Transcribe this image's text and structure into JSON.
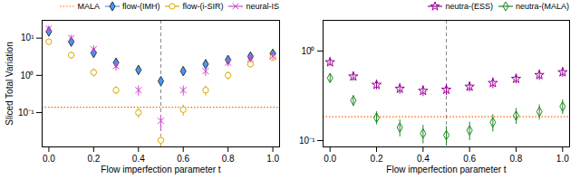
{
  "chart_data": [
    {
      "type": "scatter",
      "x_label": "Flow imperfection parameter t",
      "y_label": "Sliced Total Variation",
      "x": [
        0.0,
        0.1,
        0.2,
        0.3,
        0.4,
        0.5,
        0.6,
        0.7,
        0.8,
        0.9,
        1.0
      ],
      "xlim": [
        -0.03,
        1.03
      ],
      "xticks": [
        {
          "value": 0,
          "label": "0.0"
        },
        0.2,
        0.4,
        0.6,
        0.8,
        {
          "value": 1,
          "label": "1.0"
        }
      ],
      "ylim": [
        0.012,
        30
      ],
      "yticks": [
        {
          "value": 0.1,
          "label": "10⁻¹"
        },
        {
          "value": 1,
          "label": "10⁰"
        },
        {
          "value": 10,
          "label": "10¹"
        }
      ],
      "log": "y",
      "grid": false,
      "legend": "upper right",
      "hlines": [
        {
          "name": "MALA",
          "value": 0.14,
          "color": "#ff6600",
          "line_style": "dotted"
        }
      ],
      "vlines": [
        {
          "value": 0.5,
          "color": "#888888",
          "line_style": "dashed"
        }
      ],
      "series": [
        {
          "name": "flow-(IMH)",
          "color": "#4499ff",
          "marker": "diamond",
          "values": [
            15,
            8,
            4,
            2.2,
            1.4,
            0.7,
            1.3,
            2.0,
            2.6,
            3.2,
            3.8
          ],
          "errors": [
            2.5,
            1.5,
            0.8,
            0.5,
            0.3,
            0.15,
            0.25,
            0.35,
            0.45,
            0.55,
            0.65
          ]
        },
        {
          "name": "flow-(i-SIR)",
          "color": "#ddaa00",
          "marker": "open-circle",
          "values": [
            8,
            3.5,
            1.2,
            0.4,
            0.1,
            0.018,
            0.12,
            0.4,
            1.0,
            2.0,
            3.0
          ],
          "errors": [
            1.5,
            0.8,
            0.3,
            0.1,
            0.03,
            0.006,
            0.04,
            0.12,
            0.25,
            0.4,
            0.6
          ]
        },
        {
          "name": "neural-IS",
          "color": "#cc44cc",
          "marker": "x",
          "values": [
            18,
            10,
            5,
            1.8,
            0.4,
            0.06,
            0.4,
            1.3,
            2.2,
            2.8,
            3.3
          ],
          "errors": [
            3,
            2,
            1.2,
            0.5,
            0.12,
            0.025,
            0.12,
            0.35,
            0.5,
            0.6,
            0.7
          ]
        }
      ]
    },
    {
      "type": "scatter",
      "x_label": "Flow imperfection parameter t",
      "x": [
        0.0,
        0.1,
        0.2,
        0.3,
        0.4,
        0.5,
        0.6,
        0.7,
        0.8,
        0.9,
        1.0
      ],
      "xlim": [
        -0.03,
        1.03
      ],
      "xticks": [
        {
          "value": 0,
          "label": "0.0"
        },
        0.2,
        0.4,
        0.6,
        0.8,
        {
          "value": 1,
          "label": "1.0"
        }
      ],
      "ylim": [
        0.085,
        2.2
      ],
      "yticks": [
        {
          "value": 0.1,
          "label": "10⁻¹"
        },
        {
          "value": 1,
          "label": "10⁰"
        }
      ],
      "log": "y",
      "grid": false,
      "legend": "upper right",
      "hlines": [
        {
          "value": 0.185,
          "color": "#ff6600",
          "line_style": "dotted"
        }
      ],
      "vlines": [
        {
          "value": 0.5,
          "color": "#888888",
          "line_style": "dashed"
        }
      ],
      "series": [
        {
          "name": "neutra-(ESS)",
          "color": "#990099",
          "marker": "open-star",
          "values": [
            0.75,
            0.52,
            0.42,
            0.38,
            0.36,
            0.37,
            0.4,
            0.44,
            0.49,
            0.54,
            0.58
          ],
          "errors": [
            0.07,
            0.06,
            0.05,
            0.05,
            0.05,
            0.05,
            0.05,
            0.06,
            0.06,
            0.07,
            0.07
          ]
        },
        {
          "name": "neutra-(MALA)",
          "color": "#228822",
          "marker": "open-diamond",
          "values": [
            0.5,
            0.28,
            0.18,
            0.14,
            0.12,
            0.115,
            0.13,
            0.16,
            0.19,
            0.21,
            0.24
          ],
          "errors": [
            0.055,
            0.04,
            0.03,
            0.03,
            0.028,
            0.028,
            0.03,
            0.035,
            0.038,
            0.04,
            0.045
          ]
        }
      ]
    }
  ]
}
